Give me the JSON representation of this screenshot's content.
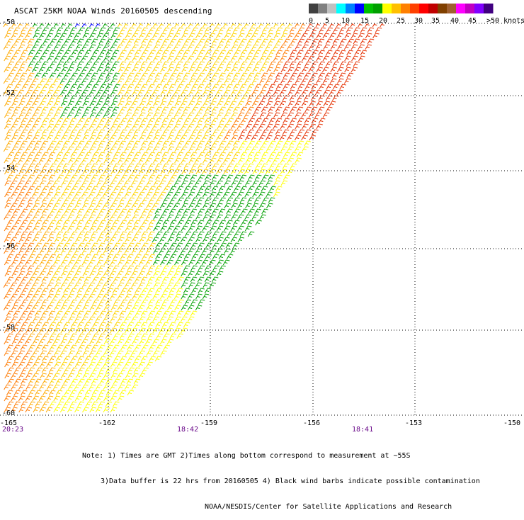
{
  "title": "ASCAT 25KM NOAA Winds 20160505 descending",
  "legend": {
    "colors": [
      "#404040",
      "#808080",
      "#c0c0c0",
      "#00ffff",
      "#0080ff",
      "#0000ff",
      "#00c000",
      "#00a000",
      "#ffff00",
      "#ffc000",
      "#ff8000",
      "#ff4000",
      "#ff0000",
      "#c00000",
      "#804000",
      "#a06030",
      "#ff00ff",
      "#c000c0",
      "#8000ff",
      "#400080"
    ],
    "labels": [
      "0",
      "5",
      "10",
      "15",
      "20",
      "25",
      "30",
      "35",
      "40",
      "45",
      ">50 knots"
    ]
  },
  "axes": {
    "lat_labels": [
      "-50",
      "-52",
      "-54",
      "-56",
      "-58",
      "-60"
    ],
    "lon_labels": [
      "-165",
      "-162",
      "-159",
      "-156",
      "-153",
      "-150"
    ]
  },
  "times": [
    "20:23",
    "18:42",
    "18:41"
  ],
  "notes": [
    "Note: 1) Times are GMT 2)Times along bottom correspond to measurement at ~55S",
    "3)Data buffer is 22 hrs from 20160505 4) Black wind barbs indicate possible contamination",
    "NOAA/NESDIS/Center for Satellite Applications and Research"
  ],
  "colors": {
    "light": "#ffff00",
    "moderate": "#ffd400",
    "fresh": "#ffaa00",
    "strong": "#ff7a00",
    "gale": "#e53000",
    "green": "#00a000",
    "blue": "#0000ff",
    "grid": "#000000"
  }
}
